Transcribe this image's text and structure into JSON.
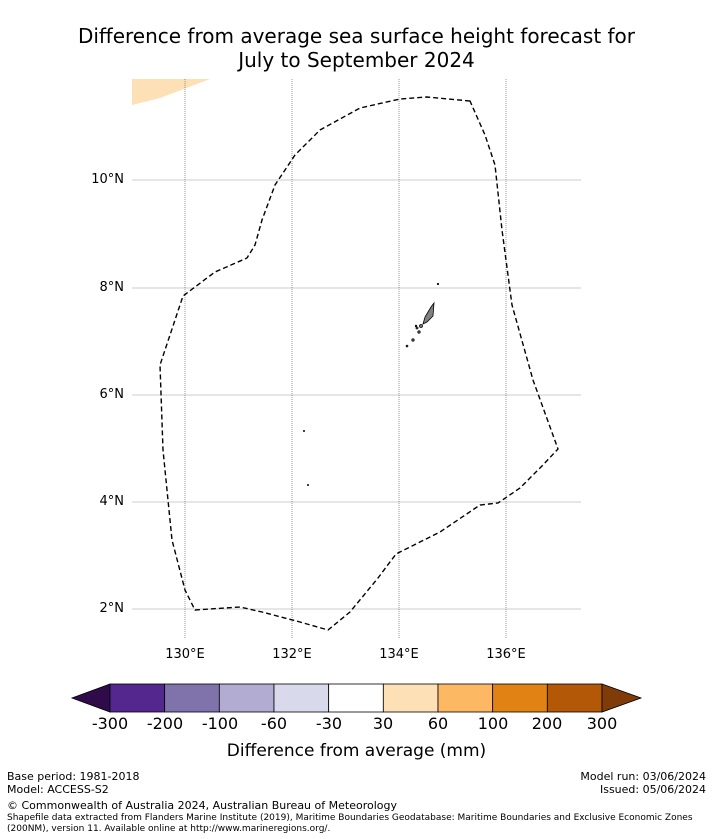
{
  "title": {
    "line1": "Difference from average sea surface height forecast for",
    "line2": "July to September 2024"
  },
  "map": {
    "lat_labels": [
      "10°N",
      "8°N",
      "6°N",
      "4°N",
      "2°N"
    ],
    "lon_labels": [
      "130°E",
      "132°E",
      "134°E",
      "136°E"
    ],
    "colors": {
      "eez_boundary": "#000000",
      "land": "#808080",
      "gridline": "#bbbbbb",
      "anomaly_patch": "#fde0b5"
    }
  },
  "colorbar": {
    "label": "Difference from average (mm)",
    "ticks": [
      "-300",
      "-200",
      "-100",
      "-60",
      "-30",
      "30",
      "60",
      "100",
      "200",
      "300"
    ],
    "under_color": "#2f0b4a",
    "over_color": "#7f3b08",
    "colors": [
      "#54278f",
      "#8073ac",
      "#b2abd2",
      "#d8daeb",
      "#ffffff",
      "#fee0b6",
      "#fdb863",
      "#e08214",
      "#b35806"
    ]
  },
  "footer": {
    "base_period": "Base period: 1981-2018",
    "model": "Model: ACCESS-S2",
    "model_run": "Model run: 03/06/2024",
    "issued": "Issued: 05/06/2024",
    "copyright": "© Commonwealth of Australia 2024, Australian Bureau of Meteorology",
    "shapefile_line1": "Shapefile data extracted from Flanders Marine Institute (2019), Maritime Boundaries Geodatabase: Maritime Boundaries and Exclusive Economic Zones",
    "shapefile_line2": "(200NM), version 11. Available online at http://www.marineregions.org/."
  }
}
